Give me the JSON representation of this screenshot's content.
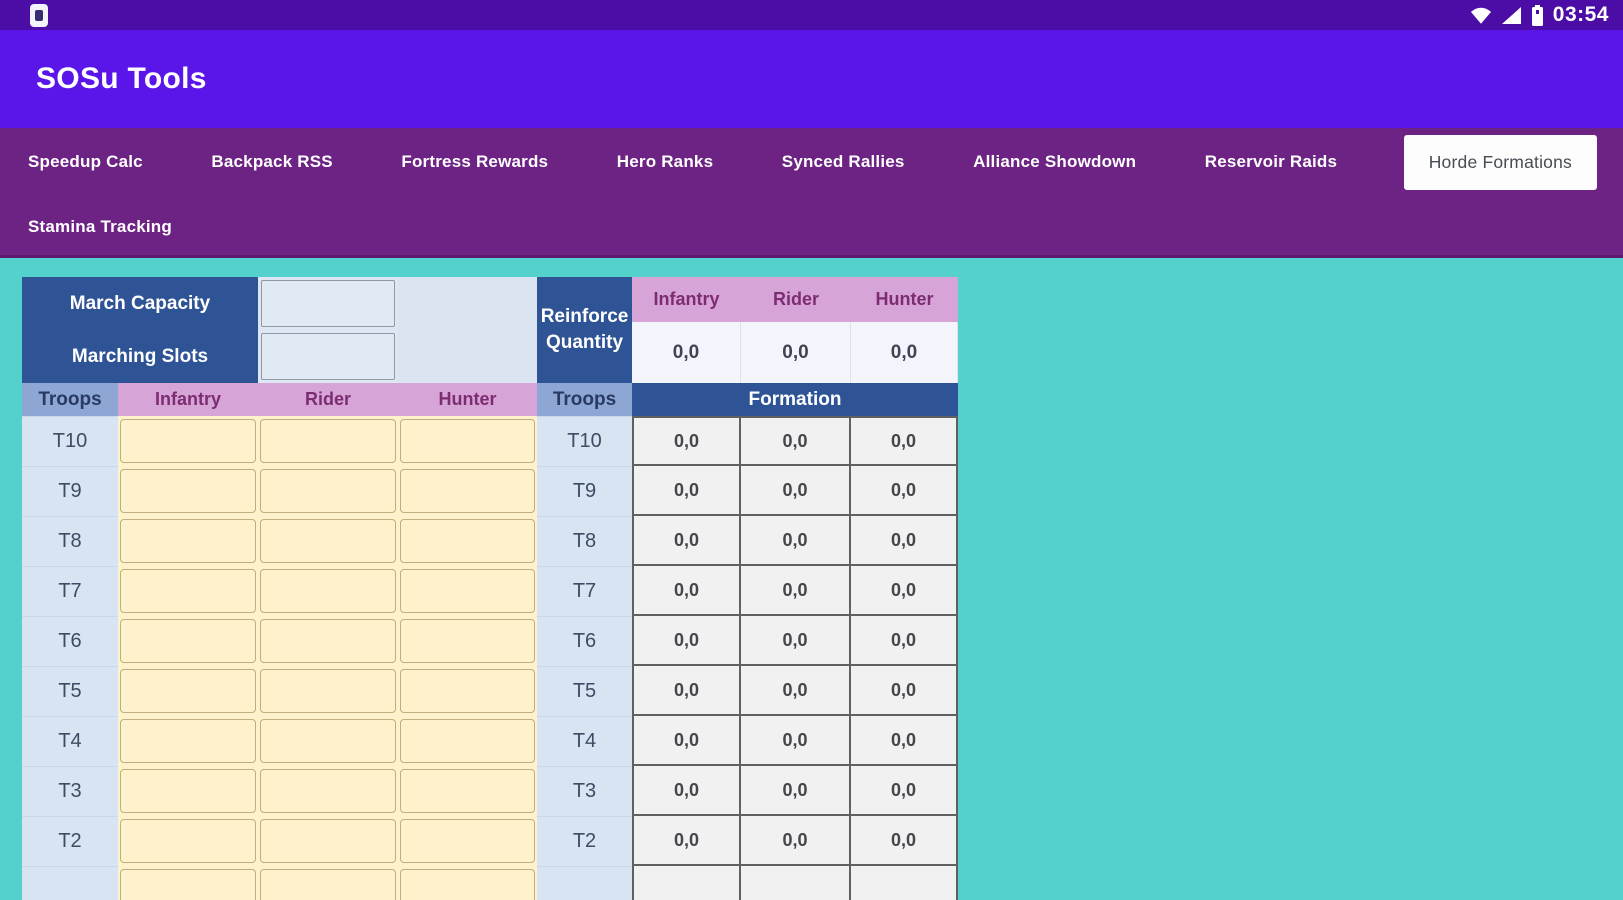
{
  "status_bar": {
    "time": "03:54",
    "icons": [
      "app-badge-icon",
      "wifi-icon",
      "signal-icon",
      "battery-icon"
    ]
  },
  "app_bar": {
    "title": "SOSu Tools"
  },
  "tab_bar": {
    "tabs_row1": [
      "Speedup Calc",
      "Backpack RSS",
      "Fortress Rewards",
      "Hero Ranks",
      "Synced Rallies",
      "Alliance Showdown",
      "Reservoir Raids",
      "Horde Formations"
    ],
    "tabs_row2": [
      "Stamina Tracking"
    ],
    "selected_tab": "Horde Formations"
  },
  "march_table": {
    "capacity_label": "March Capacity",
    "slots_label": "Marching Slots",
    "capacity_value": "",
    "slots_value": "",
    "troops_header": "Troops",
    "unit_columns": [
      "Infantry",
      "Rider",
      "Hunter"
    ],
    "tiers": [
      "T10",
      "T9",
      "T8",
      "T7",
      "T6",
      "T5",
      "T4",
      "T3",
      "T2",
      ""
    ],
    "input_values_all_empty": true
  },
  "formation_table": {
    "reinforce_label": "Reinforce Quantity",
    "unit_columns": [
      "Infantry",
      "Rider",
      "Hunter"
    ],
    "reinforce_values": [
      "0,0",
      "0,0",
      "0,0"
    ],
    "troops_header": "Troops",
    "formation_header": "Formation",
    "rows": [
      {
        "tier": "T10",
        "values": [
          "0,0",
          "0,0",
          "0,0"
        ]
      },
      {
        "tier": "T9",
        "values": [
          "0,0",
          "0,0",
          "0,0"
        ]
      },
      {
        "tier": "T8",
        "values": [
          "0,0",
          "0,0",
          "0,0"
        ]
      },
      {
        "tier": "T7",
        "values": [
          "0,0",
          "0,0",
          "0,0"
        ]
      },
      {
        "tier": "T6",
        "values": [
          "0,0",
          "0,0",
          "0,0"
        ]
      },
      {
        "tier": "T5",
        "values": [
          "0,0",
          "0,0",
          "0,0"
        ]
      },
      {
        "tier": "T4",
        "values": [
          "0,0",
          "0,0",
          "0,0"
        ]
      },
      {
        "tier": "T3",
        "values": [
          "0,0",
          "0,0",
          "0,0"
        ]
      },
      {
        "tier": "T2",
        "values": [
          "0,0",
          "0,0",
          "0,0"
        ]
      },
      {
        "tier": "",
        "values": [
          "",
          "",
          ""
        ]
      }
    ]
  },
  "colors": {
    "status_bar": "#4c0ca6",
    "app_bar": "#5a15e8",
    "tab_bar": "#6d2383",
    "background_teal": "#54d1cd",
    "header_blue": "#2f5496",
    "troops_header_blue": "#8ea6d4",
    "unit_header_pink": "#d7a4d7",
    "tier_label_blue": "#d9e4f2",
    "input_cream": "#fdf2cb",
    "formation_cell_gray": "#f1f1f1"
  }
}
